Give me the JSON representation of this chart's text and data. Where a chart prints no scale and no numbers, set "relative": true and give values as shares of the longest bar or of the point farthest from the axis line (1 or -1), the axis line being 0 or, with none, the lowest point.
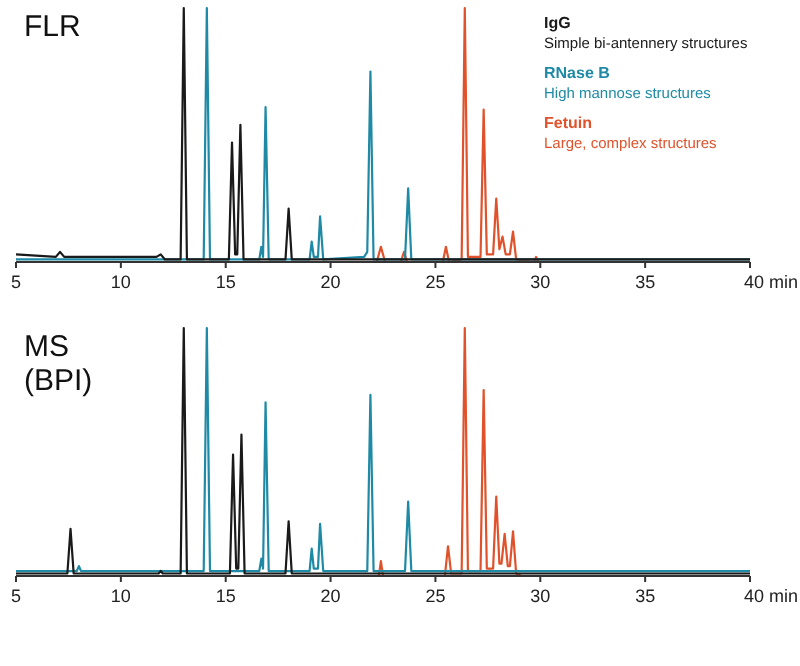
{
  "chart_data": [
    {
      "type": "line",
      "title": "FLR",
      "relative": true,
      "tick_labels": "x",
      "grid": false,
      "legend": "top right",
      "marker": "none",
      "line_style": "solid",
      "xlim": [
        5,
        40
      ],
      "xticks": [
        5,
        10,
        15,
        20,
        25,
        30,
        35,
        {
          "value": 40,
          "label": "40 min"
        }
      ],
      "annotations": [
        "Simple bi-antennery structures",
        "High mannose structures",
        "Large, complex structures"
      ],
      "series": [
        {
          "name": "IgG",
          "color": "#1a1a1a",
          "x": [
            5,
            6.9,
            7.1,
            7.3,
            11.7,
            11.9,
            12.1,
            12.85,
            13.0,
            13.15,
            15.15,
            15.3,
            15.45,
            15.55,
            15.7,
            15.85,
            17.85,
            18.0,
            18.15,
            40
          ],
          "values": [
            0.03,
            0.02,
            0.04,
            0.02,
            0.02,
            0.03,
            0.01,
            0.01,
            1,
            0.01,
            0.01,
            0.47,
            0.03,
            0.03,
            0.54,
            0.01,
            0.01,
            0.21,
            0.01,
            0.01
          ]
        },
        {
          "name": "RNase B",
          "color": "#1f8aa6",
          "x": [
            5,
            13.95,
            14.1,
            14.25,
            16.6,
            16.7,
            16.78,
            16.9,
            17.05,
            19.0,
            19.1,
            19.2,
            19.4,
            19.5,
            19.65,
            21.6,
            21.75,
            21.9,
            22.05,
            23.55,
            23.7,
            23.85,
            40
          ],
          "values": [
            0.01,
            0.01,
            1,
            0.01,
            0.01,
            0.06,
            0.02,
            0.61,
            0.01,
            0.01,
            0.08,
            0.02,
            0.02,
            0.18,
            0.01,
            0.02,
            0.04,
            0.75,
            0.01,
            0.01,
            0.29,
            0.01,
            0.01
          ]
        },
        {
          "name": "Fetuin",
          "color": "#e0522b",
          "x": [
            22.2,
            22.4,
            22.6,
            23.35,
            23.5,
            23.65,
            25.35,
            25.5,
            25.65,
            26.25,
            26.4,
            26.55,
            27.15,
            27.3,
            27.45,
            27.75,
            27.9,
            28.05,
            28.2,
            28.35,
            28.55,
            28.7,
            28.85,
            29.7,
            29.8,
            29.9,
            30.5
          ],
          "values": [
            0,
            0.06,
            0,
            0,
            0.04,
            0,
            0,
            0.06,
            0,
            0.01,
            1,
            0.02,
            0.02,
            0.6,
            0.03,
            0.03,
            0.25,
            0.05,
            0.1,
            0.03,
            0.03,
            0.12,
            0.01,
            0,
            0.02,
            0,
            0
          ]
        }
      ]
    },
    {
      "type": "line",
      "title": "MS\n(BPI)",
      "relative": true,
      "tick_labels": "x",
      "grid": false,
      "marker": "none",
      "line_style": "solid",
      "xlim": [
        5,
        40
      ],
      "xticks": [
        5,
        10,
        15,
        20,
        25,
        30,
        35,
        {
          "value": 40,
          "label": "40 min"
        }
      ],
      "series": [
        {
          "color": "#1a1a1a",
          "x": [
            5,
            7.45,
            7.6,
            7.75,
            11.8,
            11.9,
            12.0,
            12.85,
            13.0,
            13.15,
            15.2,
            15.35,
            15.5,
            15.6,
            15.75,
            15.9,
            17.85,
            18.0,
            18.15,
            40
          ],
          "values": [
            0.01,
            0.01,
            0.19,
            0.01,
            0.01,
            0.02,
            0.01,
            0.01,
            1,
            0.01,
            0.01,
            0.49,
            0.03,
            0.03,
            0.57,
            0.01,
            0.01,
            0.22,
            0.01,
            0.01
          ]
        },
        {
          "color": "#1f8aa6",
          "x": [
            5,
            7.9,
            8.0,
            8.1,
            13.95,
            14.1,
            14.25,
            16.6,
            16.7,
            16.78,
            16.9,
            17.05,
            19.0,
            19.1,
            19.2,
            19.4,
            19.5,
            19.65,
            21.75,
            21.9,
            22.05,
            23.55,
            23.7,
            23.85,
            40
          ],
          "values": [
            0.02,
            0.02,
            0.04,
            0.02,
            0.02,
            1,
            0.02,
            0.02,
            0.07,
            0.03,
            0.7,
            0.02,
            0.02,
            0.11,
            0.03,
            0.03,
            0.21,
            0.02,
            0.02,
            0.73,
            0.02,
            0.02,
            0.3,
            0.02,
            0.02
          ]
        },
        {
          "color": "#e0522b",
          "x": [
            22.3,
            22.4,
            22.5,
            25.45,
            25.6,
            25.75,
            26.25,
            26.4,
            26.55,
            27.15,
            27.3,
            27.45,
            27.75,
            27.9,
            28.05,
            28.15,
            28.3,
            28.45,
            28.55,
            28.7,
            28.85,
            29.1
          ],
          "values": [
            0,
            0.06,
            0,
            0,
            0.12,
            0.01,
            0.01,
            1,
            0.02,
            0.02,
            0.75,
            0.03,
            0.03,
            0.32,
            0.05,
            0.05,
            0.17,
            0.04,
            0.04,
            0.18,
            0.01,
            0
          ]
        }
      ]
    }
  ]
}
